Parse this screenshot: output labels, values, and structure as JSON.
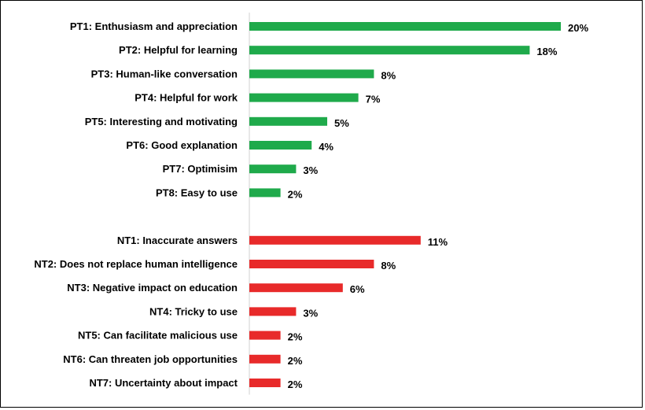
{
  "chart_data": {
    "type": "bar",
    "orientation": "horizontal",
    "groups": [
      {
        "color": "#1faa4b",
        "items": [
          {
            "label": "PT1: Enthusiasm and appreciation",
            "value": 20,
            "value_label": "20%"
          },
          {
            "label": "PT2: Helpful for learning",
            "value": 18,
            "value_label": "18%"
          },
          {
            "label": "PT3: Human-like conversation",
            "value": 8,
            "value_label": "8%"
          },
          {
            "label": "PT4: Helpful for work",
            "value": 7,
            "value_label": "7%"
          },
          {
            "label": "PT5: Interesting and motivating",
            "value": 5,
            "value_label": "5%"
          },
          {
            "label": "PT6: Good explanation",
            "value": 4,
            "value_label": "4%"
          },
          {
            "label": "PT7: Optimisim",
            "value": 3,
            "value_label": "3%"
          },
          {
            "label": "PT8: Easy to use",
            "value": 2,
            "value_label": "2%"
          }
        ]
      },
      {
        "color": "#e82a2a",
        "items": [
          {
            "label": "NT1: Inaccurate answers",
            "value": 11,
            "value_label": "11%"
          },
          {
            "label": "NT2: Does not replace human intelligence",
            "value": 8,
            "value_label": "8%"
          },
          {
            "label": "NT3: Negative impact on education",
            "value": 6,
            "value_label": "6%"
          },
          {
            "label": "NT4: Tricky to use",
            "value": 3,
            "value_label": "3%"
          },
          {
            "label": "NT5: Can facilitate malicious use",
            "value": 2,
            "value_label": "2%"
          },
          {
            "label": "NT6: Can threaten job opportunities",
            "value": 2,
            "value_label": "2%"
          },
          {
            "label": "NT7: Uncertainty about impact",
            "value": 2,
            "value_label": "2%"
          }
        ]
      }
    ],
    "xlim": [
      0,
      20
    ],
    "grid": false,
    "legend": "none"
  }
}
